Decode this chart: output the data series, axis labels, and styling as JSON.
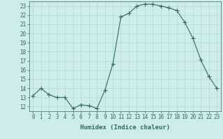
{
  "x": [
    0,
    1,
    2,
    3,
    4,
    5,
    6,
    7,
    8,
    9,
    10,
    11,
    12,
    13,
    14,
    15,
    16,
    17,
    18,
    19,
    20,
    21,
    22,
    23
  ],
  "y": [
    13.2,
    14.0,
    13.3,
    13.0,
    13.0,
    11.8,
    12.2,
    12.1,
    11.8,
    13.8,
    16.7,
    21.8,
    22.2,
    23.0,
    23.2,
    23.2,
    23.0,
    22.8,
    22.5,
    21.2,
    19.5,
    17.1,
    15.3,
    14.0
  ],
  "line_color": "#2d6b5e",
  "marker": "+",
  "marker_size": 4,
  "bg_color": "#ceecea",
  "grid_color": "#b0d8d4",
  "xlabel": "Humidex (Indice chaleur)",
  "ylabel": "",
  "xlim": [
    -0.5,
    23.5
  ],
  "ylim": [
    11.5,
    23.5
  ],
  "yticks": [
    12,
    13,
    14,
    15,
    16,
    17,
    18,
    19,
    20,
    21,
    22,
    23
  ],
  "xticks": [
    0,
    1,
    2,
    3,
    4,
    5,
    6,
    7,
    8,
    9,
    10,
    11,
    12,
    13,
    14,
    15,
    16,
    17,
    18,
    19,
    20,
    21,
    22,
    23
  ],
  "label_color": "#2d6b5e",
  "tick_color": "#2d6b5e",
  "axis_color": "#2d6b5e",
  "font_size_label": 6.5,
  "font_size_tick": 5.5,
  "line_width": 0.8
}
